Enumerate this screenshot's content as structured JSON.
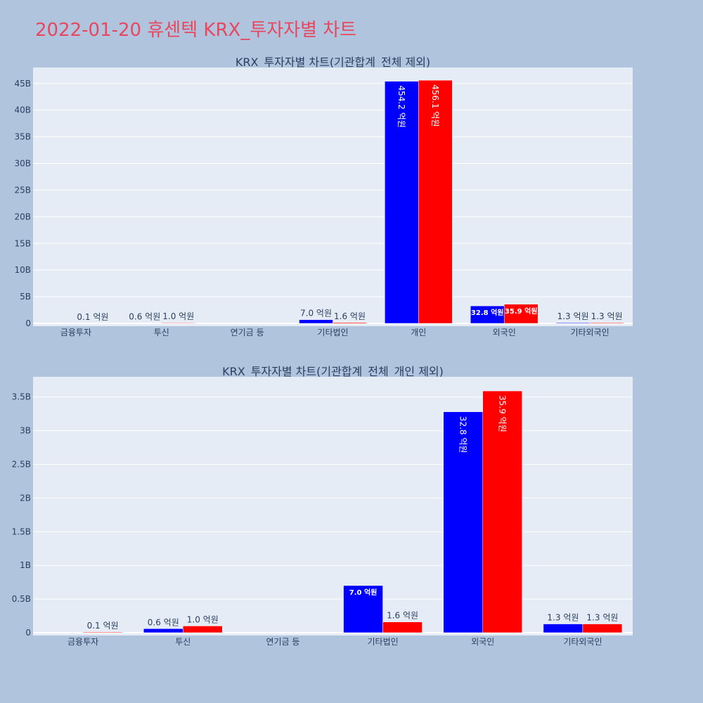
{
  "page": {
    "title": "2022-01-20 휴센텍 KRX_투자자별 차트"
  },
  "colors": {
    "background": "#b0c4de",
    "plot_background": "#e5ecf6",
    "title": "#e8475f",
    "series_blue": "#0000ff",
    "series_red": "#ff0000"
  },
  "chart_data": [
    {
      "type": "bar",
      "title": "KRX_투자자별 차트(기관합계_전체 제외)",
      "categories": [
        "금융투자",
        "투신",
        "연기금 등",
        "기타법인",
        "개인",
        "외국인",
        "기타외국인"
      ],
      "series": [
        {
          "color": "#0000ff",
          "values": [
            0,
            60000000,
            0,
            700000000,
            45420000000,
            3280000000,
            130000000
          ],
          "labels": [
            "",
            "0.6 억원",
            "",
            "7.0 억원",
            "454.2 억원",
            "32.8 억원",
            "1.3 억원"
          ]
        },
        {
          "color": "#ff0000",
          "values": [
            10000000,
            100000000,
            0,
            160000000,
            45610000000,
            3590000000,
            130000000
          ],
          "labels": [
            "0.1 억원",
            "1.0 억원",
            "",
            "1.6 억원",
            "456.1 억원",
            "35.9 억원",
            "1.3 억원"
          ]
        }
      ],
      "ylim": [
        0,
        48000000000
      ],
      "yticks": [
        0,
        5000000000,
        10000000000,
        15000000000,
        20000000000,
        25000000000,
        30000000000,
        35000000000,
        40000000000,
        45000000000
      ],
      "ytick_labels": [
        "0",
        "5B",
        "10B",
        "15B",
        "20B",
        "25B",
        "30B",
        "35B",
        "40B",
        "45B"
      ],
      "grid": true,
      "legend": "none"
    },
    {
      "type": "bar",
      "title": "KRX_투자자별 차트(기관합계_전체_개인 제외)",
      "categories": [
        "금융투자",
        "투신",
        "연기금 등",
        "기타법인",
        "외국인",
        "기타외국인"
      ],
      "series": [
        {
          "color": "#0000ff",
          "values": [
            0,
            60000000,
            0,
            700000000,
            3280000000,
            130000000
          ],
          "labels": [
            "",
            "0.6 억원",
            "",
            "7.0 억원",
            "32.8 억원",
            "1.3 억원"
          ]
        },
        {
          "color": "#ff0000",
          "values": [
            10000000,
            100000000,
            0,
            160000000,
            3590000000,
            130000000
          ],
          "labels": [
            "0.1 억원",
            "1.0 억원",
            "",
            "1.6 억원",
            "35.9 억원",
            "1.3 억원"
          ]
        }
      ],
      "ylim": [
        0,
        3800000000
      ],
      "yticks": [
        0,
        500000000,
        1000000000,
        1500000000,
        2000000000,
        2500000000,
        3000000000,
        3500000000
      ],
      "ytick_labels": [
        "0",
        "0.5B",
        "1B",
        "1.5B",
        "2B",
        "2.5B",
        "3B",
        "3.5B"
      ],
      "grid": true,
      "legend": "none"
    }
  ]
}
